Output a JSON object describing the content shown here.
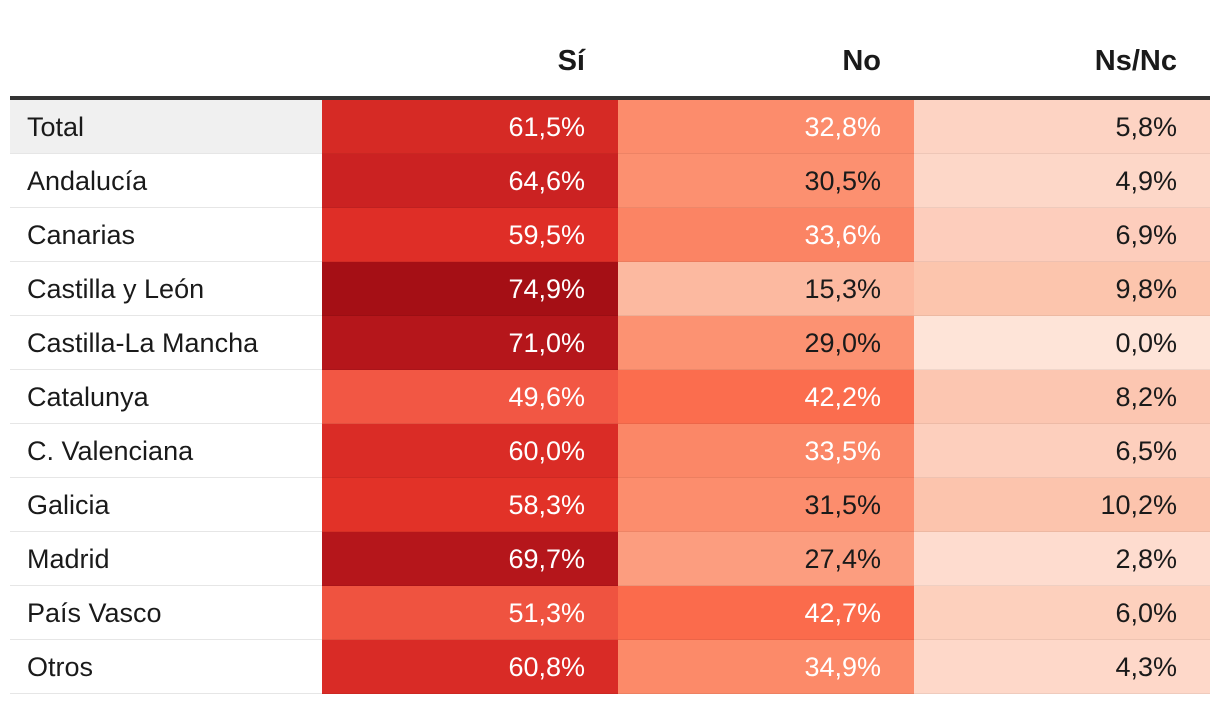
{
  "chart_data": {
    "type": "table",
    "columns": [
      "Sí",
      "No",
      "Ns/Nc"
    ],
    "rows": [
      {
        "label": "Total",
        "values": [
          "61,5%",
          "32,8%",
          "5,8%"
        ]
      },
      {
        "label": "Andalucía",
        "values": [
          "64,6%",
          "30,5%",
          "4,9%"
        ]
      },
      {
        "label": "Canarias",
        "values": [
          "59,5%",
          "33,6%",
          "6,9%"
        ]
      },
      {
        "label": "Castilla y León",
        "values": [
          "74,9%",
          "15,3%",
          "9,8%"
        ]
      },
      {
        "label": "Castilla-La Mancha",
        "values": [
          "71,0%",
          "29,0%",
          "0,0%"
        ]
      },
      {
        "label": "Catalunya",
        "values": [
          "49,6%",
          "42,2%",
          "8,2%"
        ]
      },
      {
        "label": "C. Valenciana",
        "values": [
          "60,0%",
          "33,5%",
          "6,5%"
        ]
      },
      {
        "label": "Galicia",
        "values": [
          "58,3%",
          "31,5%",
          "10,2%"
        ]
      },
      {
        "label": "Madrid",
        "values": [
          "69,7%",
          "27,4%",
          "2,8%"
        ]
      },
      {
        "label": "País Vasco",
        "values": [
          "51,3%",
          "42,7%",
          "6,0%"
        ]
      },
      {
        "label": "Otros",
        "values": [
          "60,8%",
          "34,9%",
          "4,3%"
        ]
      }
    ],
    "cell_colors": [
      [
        "#d62a25",
        "#fc8c6c",
        "#fdd3c3"
      ],
      [
        "#cb2222",
        "#fc9070",
        "#fdd7c8"
      ],
      [
        "#df2e27",
        "#fb8464",
        "#fdcdbc"
      ],
      [
        "#a50f15",
        "#fcb9a0",
        "#fcc5ad"
      ],
      [
        "#b5161b",
        "#fc9272",
        "#fee4d8"
      ],
      [
        "#f25744",
        "#fb6d4e",
        "#fcc6b1"
      ],
      [
        "#da2c26",
        "#fb8767",
        "#fdcfbd"
      ],
      [
        "#e23228",
        "#fc8d6d",
        "#fcc4ad"
      ],
      [
        "#b5161b",
        "#fc9d7f",
        "#fedccf"
      ],
      [
        "#ef5340",
        "#fb6b4c",
        "#fdd0bd"
      ],
      [
        "#d92b26",
        "#fc8a69",
        "#fed8c9"
      ]
    ],
    "text_colors": [
      [
        "#ffffff",
        "#ffffff",
        "#1a1a1a"
      ],
      [
        "#ffffff",
        "#1a1a1a",
        "#1a1a1a"
      ],
      [
        "#ffffff",
        "#ffffff",
        "#1a1a1a"
      ],
      [
        "#ffffff",
        "#1a1a1a",
        "#1a1a1a"
      ],
      [
        "#ffffff",
        "#1a1a1a",
        "#1a1a1a"
      ],
      [
        "#ffffff",
        "#ffffff",
        "#1a1a1a"
      ],
      [
        "#ffffff",
        "#ffffff",
        "#1a1a1a"
      ],
      [
        "#ffffff",
        "#1a1a1a",
        "#1a1a1a"
      ],
      [
        "#ffffff",
        "#1a1a1a",
        "#1a1a1a"
      ],
      [
        "#ffffff",
        "#ffffff",
        "#1a1a1a"
      ],
      [
        "#ffffff",
        "#ffffff",
        "#1a1a1a"
      ]
    ]
  }
}
